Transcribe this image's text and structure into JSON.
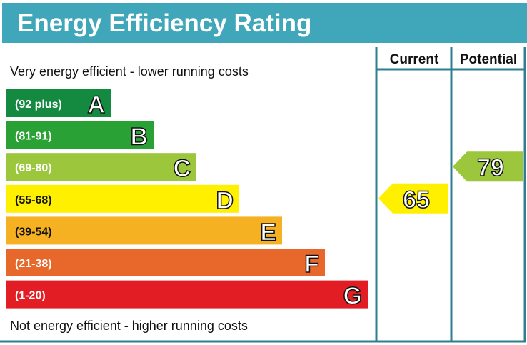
{
  "chart_data": {
    "type": "bar",
    "title": "Energy Efficiency Rating",
    "top_note": "Very energy efficient - lower running costs",
    "bottom_note": "Not energy efficient - higher running costs",
    "columns": [
      "Current",
      "Potential"
    ],
    "bands": [
      {
        "letter": "A",
        "range": "(92 plus)",
        "color": "#138a3f"
      },
      {
        "letter": "B",
        "range": "(81-91)",
        "color": "#2aa135"
      },
      {
        "letter": "C",
        "range": "(69-80)",
        "color": "#9cc63c"
      },
      {
        "letter": "D",
        "range": "(55-68)",
        "color": "#fff000"
      },
      {
        "letter": "E",
        "range": "(39-54)",
        "color": "#f5b121"
      },
      {
        "letter": "F",
        "range": "(21-38)",
        "color": "#e8672a"
      },
      {
        "letter": "G",
        "range": "(1-20)",
        "color": "#e31d24"
      }
    ],
    "current": {
      "value": 65,
      "band": "D",
      "color": "#fff000"
    },
    "potential": {
      "value": 79,
      "band": "C",
      "color": "#9cc63c"
    }
  },
  "colors": {
    "header": "#3fa7b9",
    "grid": "#2f7f91"
  }
}
